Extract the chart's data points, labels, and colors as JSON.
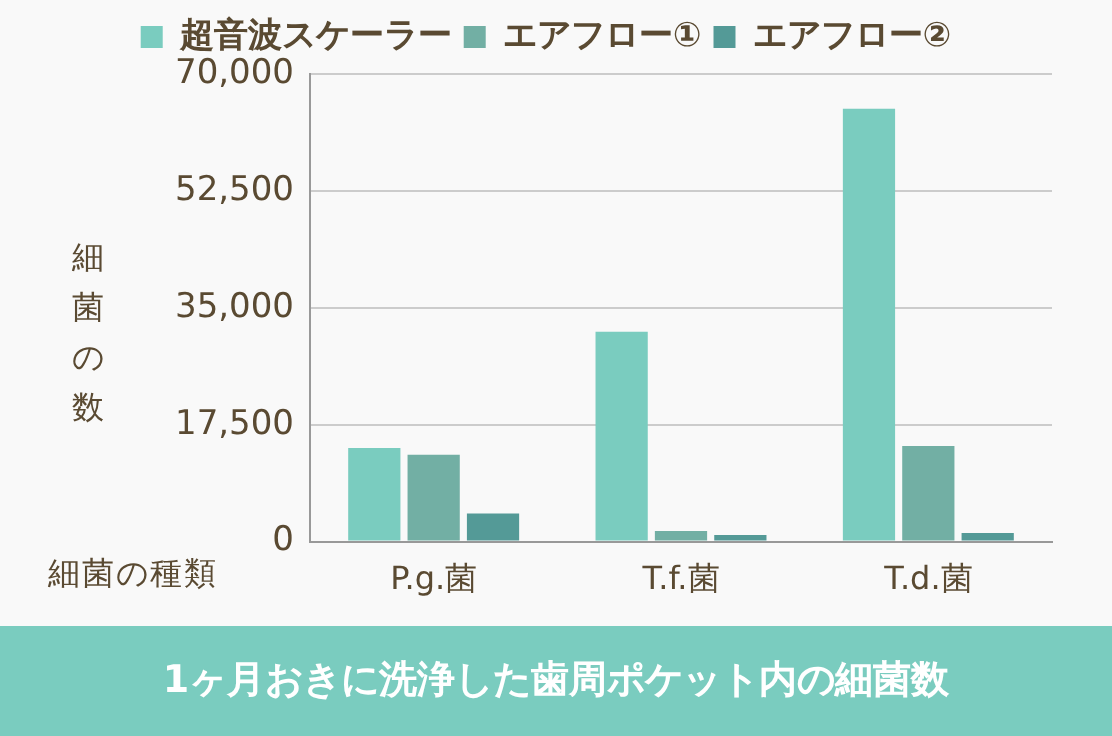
{
  "chart_data": {
    "type": "bar",
    "title": "1ヶ月おきに洗浄した歯周ポケット内の細菌数",
    "xlabel": "細菌の種類",
    "ylabel": "細菌の数",
    "categories": [
      "P.g.菌",
      "T.f.菌",
      "T.d.菌"
    ],
    "series": [
      {
        "name": "超音波スケーラー",
        "color": "#7accbf",
        "values": [
          14000,
          31400,
          64800
        ]
      },
      {
        "name": "エアフロー①",
        "color": "#72afa4",
        "values": [
          13000,
          1600,
          14300
        ]
      },
      {
        "name": "エアフロー②",
        "color": "#549a97",
        "values": [
          4200,
          1000,
          1300
        ]
      }
    ],
    "ylim": [
      0,
      70000
    ],
    "yticks": [
      0,
      {
        "value": 17500,
        "label": "17,500"
      },
      {
        "value": 35000,
        "label": "35,000"
      },
      {
        "value": 52500,
        "label": "52,500"
      },
      {
        "value": 70000,
        "label": "70,000"
      }
    ],
    "grid": "y",
    "legend": "top"
  }
}
